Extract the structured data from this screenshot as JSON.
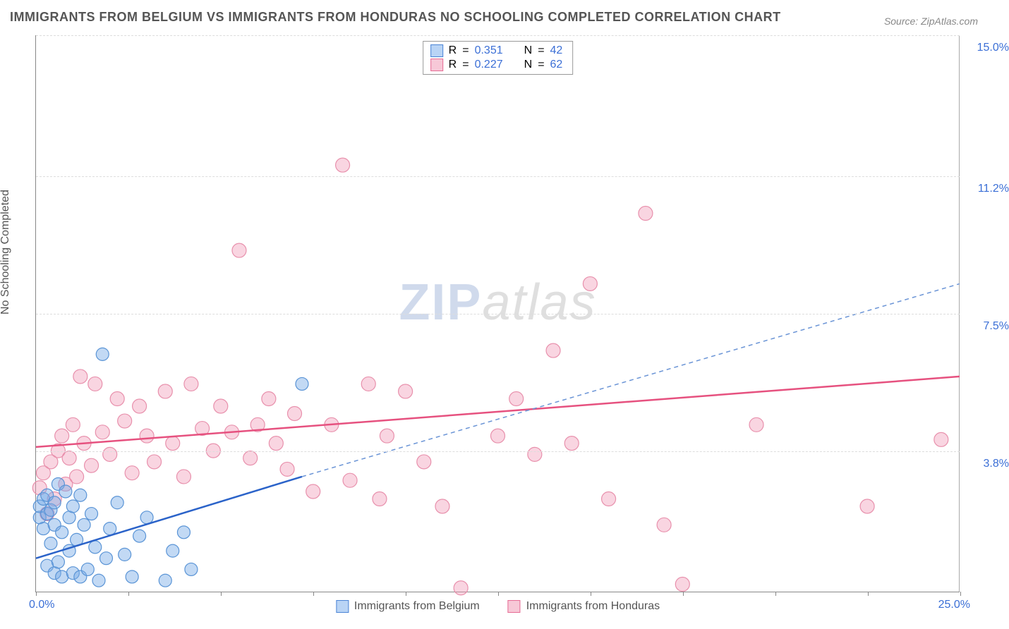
{
  "title": "IMMIGRANTS FROM BELGIUM VS IMMIGRANTS FROM HONDURAS NO SCHOOLING COMPLETED CORRELATION CHART",
  "source": "Source: ZipAtlas.com",
  "y_axis_title": "No Schooling Completed",
  "watermark": {
    "part1": "ZIP",
    "part2": "atlas"
  },
  "chart": {
    "type": "scatter-with-regression",
    "background_color": "#ffffff",
    "grid_color": "#dddddd",
    "axis_color": "#888888",
    "xlim": [
      0.0,
      25.0
    ],
    "ylim": [
      0.0,
      15.0
    ],
    "x_ticks": [
      0,
      2.5,
      5,
      7.5,
      10,
      12.5,
      15,
      17.5,
      20,
      22.5,
      25
    ],
    "x_labels": {
      "min": "0.0%",
      "max": "25.0%"
    },
    "y_ticks": [
      3.8,
      7.5,
      11.2,
      15.0
    ],
    "y_labels": [
      "3.8%",
      "7.5%",
      "11.2%",
      "15.0%"
    ],
    "label_color": "#3b6fd6",
    "label_fontsize": 16,
    "series": {
      "belgium": {
        "label": "Immigrants from Belgium",
        "swatch_fill": "#b9d4f5",
        "swatch_border": "#4a84d6",
        "marker_fill": "rgba(120,170,230,0.45)",
        "marker_stroke": "#5a94d6",
        "marker_radius": 9,
        "line_solid_color": "#2b63c9",
        "line_dashed_color": "#6a94d6",
        "line_width": 2.5,
        "R": "0.351",
        "N": "42",
        "regression": {
          "x1": 0.0,
          "y1": 0.9,
          "x2_solid": 7.2,
          "y2_solid": 3.1,
          "x2_dash": 25.0,
          "y2_dash": 8.3
        },
        "points": [
          [
            0.1,
            2.0
          ],
          [
            0.1,
            2.3
          ],
          [
            0.2,
            1.7
          ],
          [
            0.2,
            2.5
          ],
          [
            0.3,
            0.7
          ],
          [
            0.3,
            2.1
          ],
          [
            0.3,
            2.6
          ],
          [
            0.4,
            1.3
          ],
          [
            0.4,
            2.2
          ],
          [
            0.5,
            0.5
          ],
          [
            0.5,
            1.8
          ],
          [
            0.5,
            2.4
          ],
          [
            0.6,
            0.8
          ],
          [
            0.6,
            2.9
          ],
          [
            0.7,
            0.4
          ],
          [
            0.7,
            1.6
          ],
          [
            0.8,
            2.7
          ],
          [
            0.9,
            1.1
          ],
          [
            0.9,
            2.0
          ],
          [
            1.0,
            0.5
          ],
          [
            1.0,
            2.3
          ],
          [
            1.1,
            1.4
          ],
          [
            1.2,
            0.4
          ],
          [
            1.2,
            2.6
          ],
          [
            1.3,
            1.8
          ],
          [
            1.4,
            0.6
          ],
          [
            1.5,
            2.1
          ],
          [
            1.6,
            1.2
          ],
          [
            1.7,
            0.3
          ],
          [
            1.8,
            6.4
          ],
          [
            1.9,
            0.9
          ],
          [
            2.0,
            1.7
          ],
          [
            2.2,
            2.4
          ],
          [
            2.4,
            1.0
          ],
          [
            2.6,
            0.4
          ],
          [
            2.8,
            1.5
          ],
          [
            3.0,
            2.0
          ],
          [
            3.5,
            0.3
          ],
          [
            3.7,
            1.1
          ],
          [
            4.0,
            1.6
          ],
          [
            4.2,
            0.6
          ],
          [
            7.2,
            5.6
          ]
        ]
      },
      "honduras": {
        "label": "Immigrants from Honduras",
        "swatch_fill": "#f7c8d7",
        "swatch_border": "#e66b94",
        "marker_fill": "rgba(240,150,180,0.40)",
        "marker_stroke": "#e890ac",
        "marker_radius": 10,
        "line_solid_color": "#e6517f",
        "line_width": 2.5,
        "R": "0.227",
        "N": "62",
        "regression": {
          "x1": 0.0,
          "y1": 3.9,
          "x2": 25.0,
          "y2": 5.8
        },
        "points": [
          [
            0.1,
            2.8
          ],
          [
            0.2,
            3.2
          ],
          [
            0.3,
            2.1
          ],
          [
            0.4,
            3.5
          ],
          [
            0.5,
            2.5
          ],
          [
            0.6,
            3.8
          ],
          [
            0.7,
            4.2
          ],
          [
            0.8,
            2.9
          ],
          [
            0.9,
            3.6
          ],
          [
            1.0,
            4.5
          ],
          [
            1.1,
            3.1
          ],
          [
            1.2,
            5.8
          ],
          [
            1.3,
            4.0
          ],
          [
            1.5,
            3.4
          ],
          [
            1.6,
            5.6
          ],
          [
            1.8,
            4.3
          ],
          [
            2.0,
            3.7
          ],
          [
            2.2,
            5.2
          ],
          [
            2.4,
            4.6
          ],
          [
            2.6,
            3.2
          ],
          [
            2.8,
            5.0
          ],
          [
            3.0,
            4.2
          ],
          [
            3.2,
            3.5
          ],
          [
            3.5,
            5.4
          ],
          [
            3.7,
            4.0
          ],
          [
            4.0,
            3.1
          ],
          [
            4.2,
            5.6
          ],
          [
            4.5,
            4.4
          ],
          [
            4.8,
            3.8
          ],
          [
            5.0,
            5.0
          ],
          [
            5.3,
            4.3
          ],
          [
            5.5,
            9.2
          ],
          [
            5.8,
            3.6
          ],
          [
            6.0,
            4.5
          ],
          [
            6.3,
            5.2
          ],
          [
            6.5,
            4.0
          ],
          [
            6.8,
            3.3
          ],
          [
            7.0,
            4.8
          ],
          [
            7.5,
            2.7
          ],
          [
            8.0,
            4.5
          ],
          [
            8.3,
            11.5
          ],
          [
            8.5,
            3.0
          ],
          [
            9.0,
            5.6
          ],
          [
            9.3,
            2.5
          ],
          [
            9.5,
            4.2
          ],
          [
            10.0,
            5.4
          ],
          [
            10.5,
            3.5
          ],
          [
            11.0,
            2.3
          ],
          [
            11.5,
            0.1
          ],
          [
            12.5,
            4.2
          ],
          [
            13.0,
            5.2
          ],
          [
            13.5,
            3.7
          ],
          [
            14.0,
            6.5
          ],
          [
            14.5,
            4.0
          ],
          [
            15.0,
            8.3
          ],
          [
            15.5,
            2.5
          ],
          [
            16.5,
            10.2
          ],
          [
            17.0,
            1.8
          ],
          [
            17.5,
            0.2
          ],
          [
            19.5,
            4.5
          ],
          [
            22.5,
            2.3
          ],
          [
            24.5,
            4.1
          ]
        ]
      }
    }
  },
  "legend_top": {
    "R_label": "R",
    "N_label": "N",
    "eq": "="
  }
}
